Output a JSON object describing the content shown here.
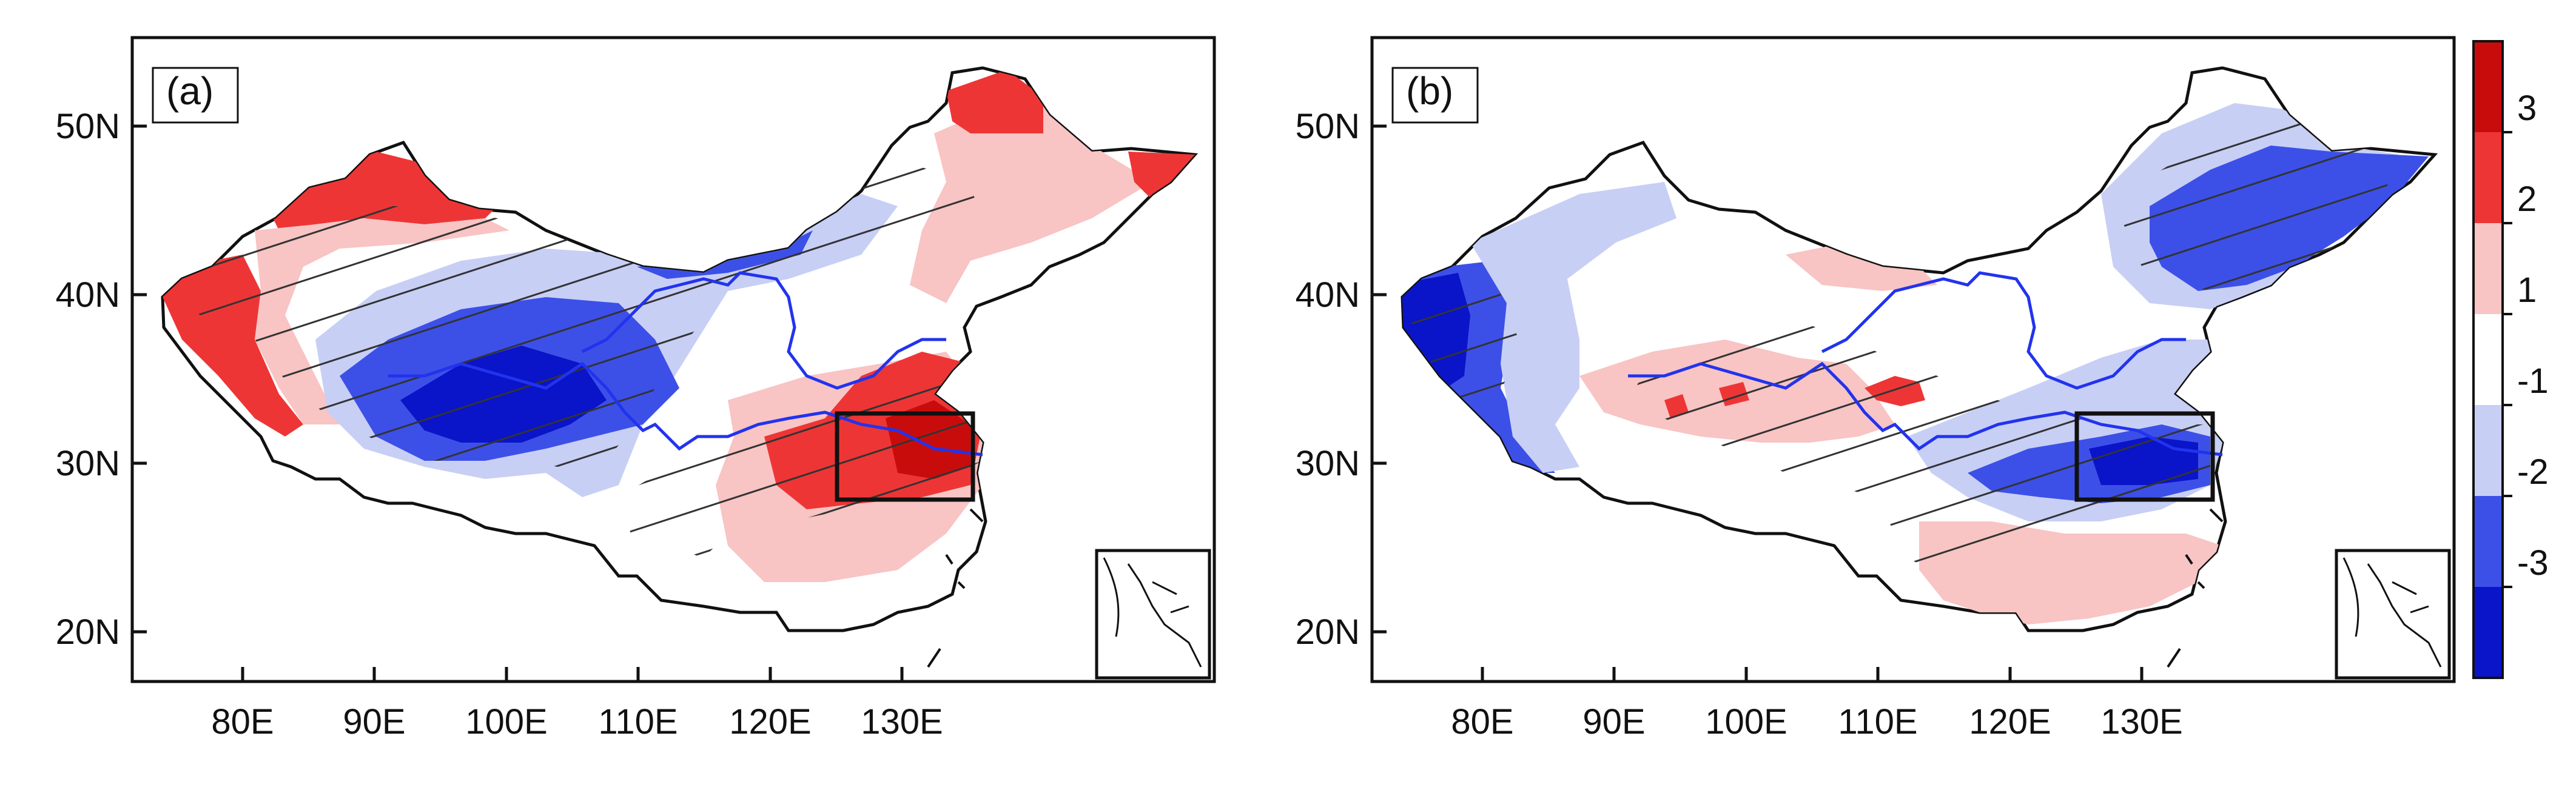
{
  "figure": {
    "panels": [
      {
        "label": "(a)",
        "lon_ticks": [
          "80E",
          "90E",
          "100E",
          "110E",
          "120E",
          "130E"
        ],
        "lat_ticks": [
          "50N",
          "40N",
          "30N",
          "20N"
        ]
      },
      {
        "label": "(b)",
        "lon_ticks": [
          "80E",
          "90E",
          "100E",
          "110E",
          "120E",
          "130E"
        ],
        "lat_ticks": [
          "50N",
          "40N",
          "30N",
          "20N"
        ]
      }
    ],
    "colorbar": {
      "labels": [
        "3",
        "2",
        "1",
        "-1",
        "-2",
        "-3"
      ],
      "colors": [
        "#c80c0c",
        "#ee3535",
        "#f8c4c4",
        "#ffffff",
        "#c8cff5",
        "#3c50e8",
        "#0a14c8"
      ]
    },
    "palette": {
      "river": "#2233ee",
      "box": "#111111",
      "hatch": "#333333"
    }
  }
}
